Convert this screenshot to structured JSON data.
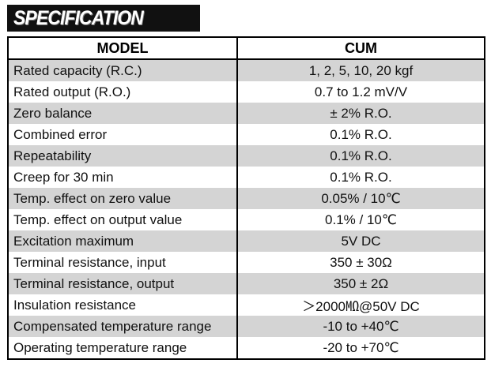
{
  "banner": {
    "title": "SPECIFICATION"
  },
  "table": {
    "headers": {
      "model": "MODEL",
      "cum": "CUM"
    },
    "rows": [
      {
        "name": "Rated capacity (R.C.)",
        "value": "1, 2, 5, 10, 20 kgf"
      },
      {
        "name": "Rated output (R.O.)",
        "value": "0.7 to 1.2 mV/V"
      },
      {
        "name": "Zero balance",
        "value": "± 2% R.O."
      },
      {
        "name": "Combined error",
        "value": "0.1% R.O."
      },
      {
        "name": "Repeatability",
        "value": "0.1% R.O."
      },
      {
        "name": "Creep for 30 min",
        "value": "0.1% R.O."
      },
      {
        "name": "Temp. effect on zero value",
        "value": "0.05% / 10℃"
      },
      {
        "name": "Temp. effect on output value",
        "value": "0.1% / 10℃"
      },
      {
        "name": "Excitation maximum",
        "value": "5V DC"
      },
      {
        "name": "Terminal resistance, input",
        "value": "350 ± 30Ω"
      },
      {
        "name": "Terminal resistance, output",
        "value": "350 ± 2Ω"
      },
      {
        "name": "Insulation resistance",
        "value": "＞2000㏁@50V DC"
      },
      {
        "name": "Compensated temperature range",
        "value": "-10 to +40℃"
      },
      {
        "name": "Operating temperature range",
        "value": "-20 to +70℃"
      }
    ]
  },
  "colors": {
    "banner_bg": "#111111",
    "row_shade": "#d4d4d4",
    "border": "#000000"
  }
}
